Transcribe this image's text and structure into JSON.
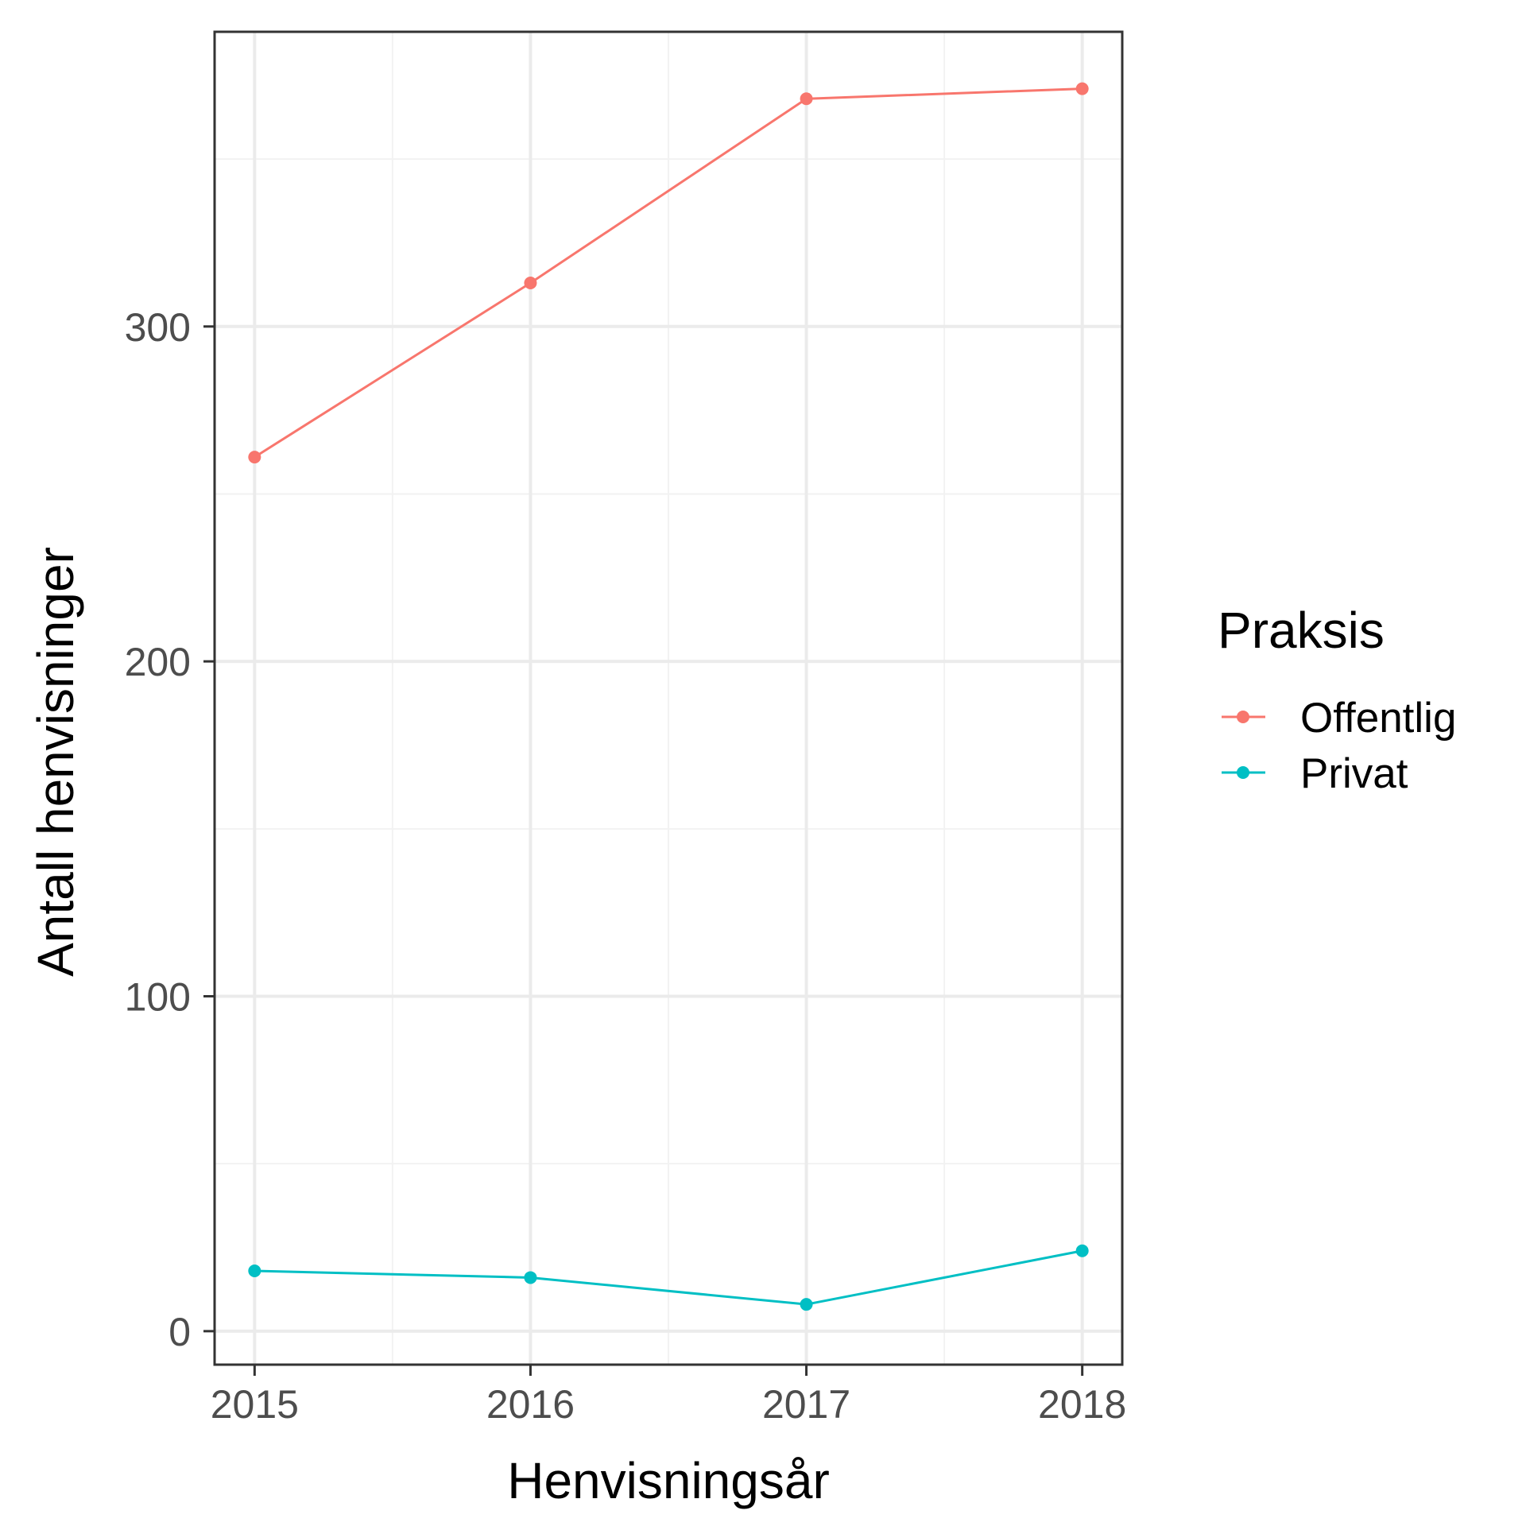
{
  "chart_data": {
    "type": "line",
    "x": [
      2015,
      2016,
      2017,
      2018
    ],
    "x_tick_labels": [
      "2015",
      "2016",
      "2017",
      "2018"
    ],
    "y_ticks": [
      0,
      100,
      200,
      300
    ],
    "y_tick_labels": [
      "0",
      "100",
      "200",
      "300"
    ],
    "xlabel": "Henvisningsår",
    "ylabel": "Antall henvisninger",
    "xlim": [
      2014.855,
      2018.145
    ],
    "ylim": [
      -10,
      388
    ],
    "grid": true,
    "legend": {
      "title": "Praksis",
      "placement": "right"
    },
    "series": [
      {
        "name": "Offentlig",
        "color": "#F8766D",
        "values": [
          261,
          313,
          368,
          371
        ]
      },
      {
        "name": "Privat",
        "color": "#00BFC4",
        "values": [
          18,
          16,
          8,
          24
        ]
      }
    ]
  }
}
